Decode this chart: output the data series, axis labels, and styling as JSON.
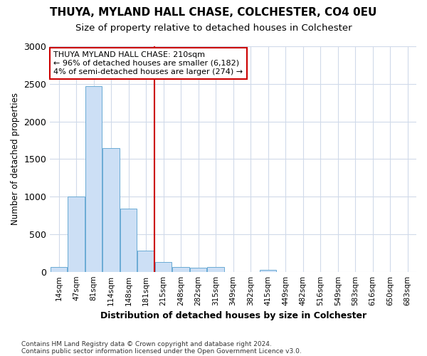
{
  "title1": "THUYA, MYLAND HALL CHASE, COLCHESTER, CO4 0EU",
  "title2": "Size of property relative to detached houses in Colchester",
  "xlabel": "Distribution of detached houses by size in Colchester",
  "ylabel": "Number of detached properties",
  "bar_labels": [
    "14sqm",
    "47sqm",
    "81sqm",
    "114sqm",
    "148sqm",
    "181sqm",
    "215sqm",
    "248sqm",
    "282sqm",
    "315sqm",
    "349sqm",
    "382sqm",
    "415sqm",
    "449sqm",
    "482sqm",
    "516sqm",
    "549sqm",
    "583sqm",
    "616sqm",
    "650sqm",
    "683sqm"
  ],
  "bar_values": [
    60,
    1000,
    2470,
    1650,
    840,
    280,
    130,
    65,
    55,
    60,
    0,
    0,
    30,
    0,
    0,
    0,
    0,
    0,
    0,
    0,
    0
  ],
  "bar_color": "#ccdff5",
  "bar_edge_color": "#6aaad4",
  "vline_x": 5.5,
  "vline_color": "#cc0000",
  "annotation_text": "THUYA MYLAND HALL CHASE: 210sqm\n← 96% of detached houses are smaller (6,182)\n4% of semi-detached houses are larger (274) →",
  "annotation_box_color": "#ffffff",
  "annotation_box_edge": "#cc0000",
  "ylim": [
    0,
    3000
  ],
  "yticks": [
    0,
    500,
    1000,
    1500,
    2000,
    2500,
    3000
  ],
  "footer1": "Contains HM Land Registry data © Crown copyright and database right 2024.",
  "footer2": "Contains public sector information licensed under the Open Government Licence v3.0.",
  "bg_color": "#ffffff",
  "plot_bg": "#ffffff",
  "grid_color": "#d0daea"
}
